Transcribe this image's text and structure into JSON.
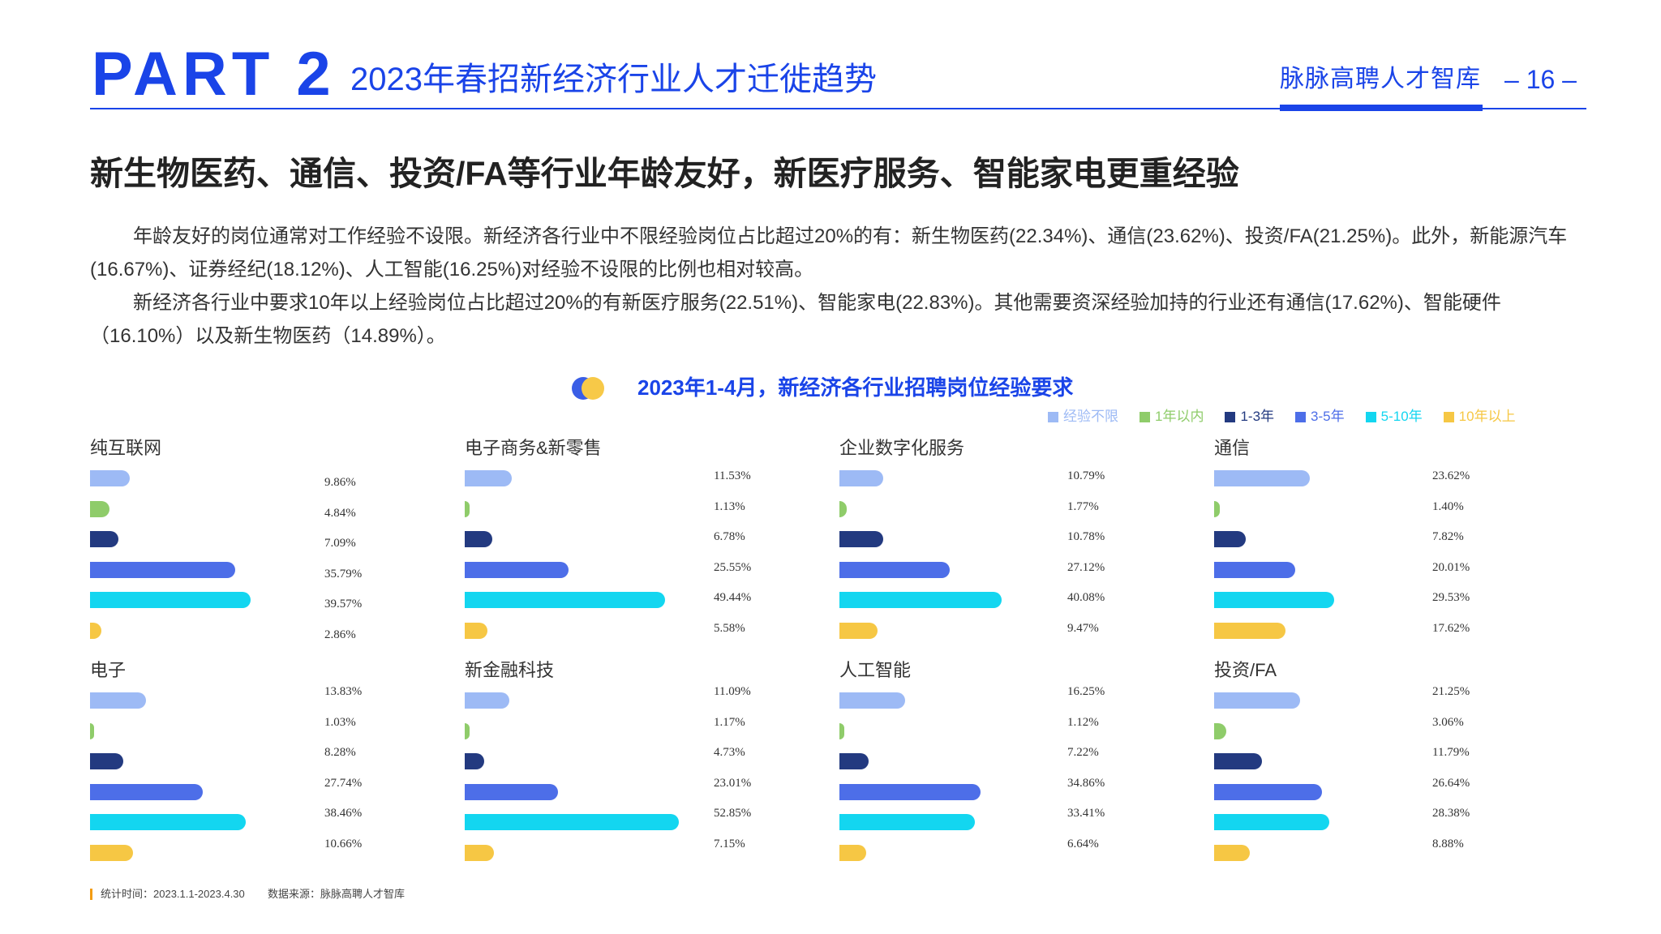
{
  "header": {
    "part": "PART 2",
    "title": "2023年春招新经济行业人才迁徙趋势",
    "brand": "脉脉高聘人才智库",
    "page": "– 16 –"
  },
  "headline": "新生物医药、通信、投资/FA等行业年龄友好，新医疗服务、智能家电更重经验",
  "paragraphs": [
    "年龄友好的岗位通常对工作经验不设限。新经济各行业中不限经验岗位占比超过20%的有：新生物医药(22.34%)、通信(23.62%)、投资/FA(21.25%)。此外，新能源汽车(16.67%)、证券经纪(18.12%)、人工智能(16.25%)对经验不设限的比例也相对较高。",
    "新经济各行业中要求10年以上经验岗位占比超过20%的有新医疗服务(22.51%)、智能家电(22.83%)。其他需要资深经验加持的行业还有通信(17.62%)、智能硬件（16.10%）以及新生物医药（14.89%）。"
  ],
  "chart_data": {
    "type": "bar",
    "orientation": "horizontal",
    "title": "2023年1-4月，新经济各行业招聘岗位经验要求",
    "unit": "%",
    "legend_position": "top-right",
    "categories": [
      "经验不限",
      "1年以内",
      "1-3年",
      "3-5年",
      "5-10年",
      "10年以上"
    ],
    "colors": [
      "#9dbaf5",
      "#8fcc6a",
      "#233a80",
      "#4d6ee8",
      "#13d6f0",
      "#f6c744"
    ],
    "panels": [
      {
        "name": "纯互联网",
        "values": [
          9.86,
          4.84,
          7.09,
          35.79,
          39.57,
          2.86
        ]
      },
      {
        "name": "电子商务&新零售",
        "values": [
          11.53,
          1.13,
          6.78,
          25.55,
          49.44,
          5.58
        ]
      },
      {
        "name": "企业数字化服务",
        "values": [
          10.79,
          1.77,
          10.78,
          27.12,
          40.08,
          9.47
        ]
      },
      {
        "name": "通信",
        "values": [
          23.62,
          1.4,
          7.82,
          20.01,
          29.53,
          17.62
        ]
      },
      {
        "name": "电子",
        "values": [
          13.83,
          1.03,
          8.28,
          27.74,
          38.46,
          10.66
        ]
      },
      {
        "name": "新金融科技",
        "values": [
          11.09,
          1.17,
          4.73,
          23.01,
          52.85,
          7.15
        ]
      },
      {
        "name": "人工智能",
        "values": [
          16.25,
          1.12,
          7.22,
          34.86,
          33.41,
          6.64
        ]
      },
      {
        "name": "投资/FA",
        "values": [
          21.25,
          3.06,
          11.79,
          26.64,
          28.38,
          8.88
        ]
      }
    ]
  },
  "footer": {
    "period": "统计时间：2023.1.1-2023.4.30",
    "source": "数据来源：脉脉高聘人才智库"
  }
}
